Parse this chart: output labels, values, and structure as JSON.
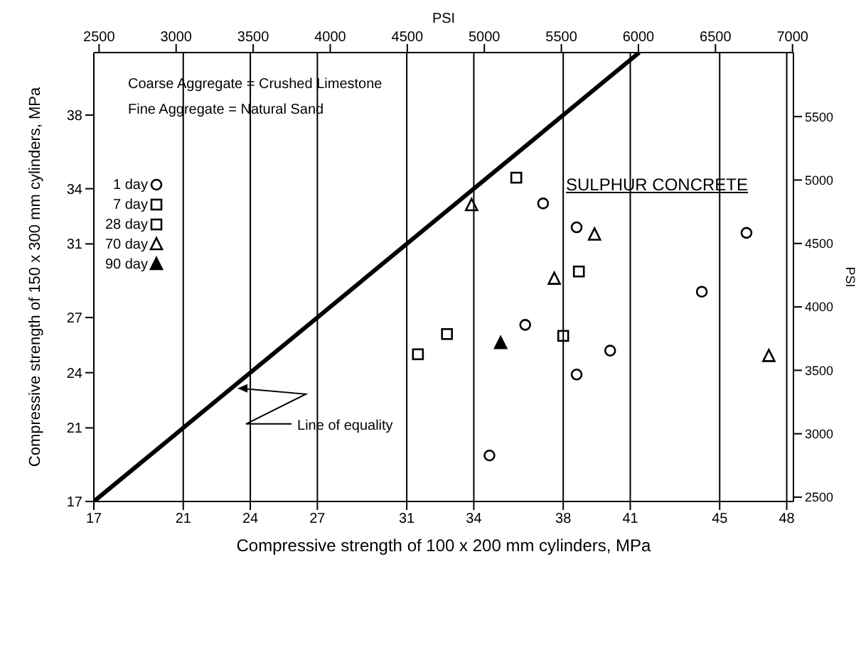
{
  "chart_data": {
    "type": "scatter",
    "xlabel": "Compressive strength of 100 x 200 mm cylinders, MPa",
    "ylabel": "Compressive strength of 150 x 300 mm cylinders, MPa",
    "x2label": "PSI",
    "y2label": "PSI",
    "annotations": [
      "Coarse Aggregate = Crushed Limestone",
      "Fine Aggregate = Natural Sand",
      "SULPHUR CONCRETE",
      {
        "text": "Line of equality",
        "x": 23.3,
        "y": 23.3
      }
    ],
    "xlim": [
      17,
      48.3
    ],
    "xticks": [
      17,
      21,
      24,
      27,
      31,
      34,
      38,
      41,
      45,
      48
    ],
    "x2lim": [
      2466,
      7006
    ],
    "x2ticks": [
      2500,
      3000,
      3500,
      4000,
      4500,
      5000,
      5500,
      6000,
      6500,
      7000
    ],
    "ylim": [
      17,
      41.4
    ],
    "yticks": [
      17,
      21,
      24,
      27,
      31,
      34,
      38
    ],
    "y2lim": [
      2466,
      6005
    ],
    "y2ticks": [
      2500,
      3000,
      3500,
      4000,
      4500,
      5000,
      5500
    ],
    "grid": "x",
    "legend": "top left",
    "series": [
      {
        "name": "1 day",
        "color": "#000000",
        "marker": "circle",
        "x": [
          37.1,
          38.6,
          46.2,
          44.2,
          36.3,
          40.1,
          38.6,
          34.7
        ],
        "values": [
          33.2,
          31.9,
          31.6,
          28.4,
          26.6,
          25.2,
          23.9,
          19.5
        ]
      },
      {
        "name": "7 day",
        "color": "#000000",
        "marker": "square",
        "x": [
          35.9,
          38.7,
          31.5
        ],
        "values": [
          34.6,
          29.5,
          25.0
        ]
      },
      {
        "name": "28 day",
        "color": "#000000",
        "marker": "square",
        "x": [
          32.8,
          38.0
        ],
        "values": [
          26.1,
          26.0
        ]
      },
      {
        "name": "70 day",
        "color": "#000000",
        "marker": "triangle",
        "x": [
          33.9,
          39.4,
          37.6,
          47.2
        ],
        "values": [
          33.1,
          31.5,
          29.1,
          24.9
        ]
      },
      {
        "name": "90 day",
        "color": "#000000",
        "marker": "triangle",
        "x": [
          35.2
        ],
        "values": [
          25.6
        ]
      },
      {
        "type": "line",
        "color": "#000000",
        "marker": "none",
        "line_style": "solid",
        "x": [
          17,
          41.4
        ],
        "values": [
          17,
          41.4
        ]
      }
    ]
  }
}
